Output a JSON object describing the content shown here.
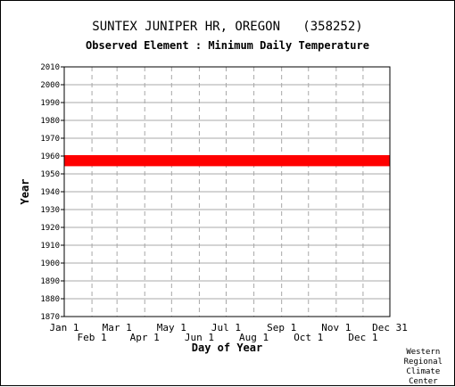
{
  "chart_data": {
    "type": "scatter",
    "title": "SUNTEX JUNIPER HR, OREGON   (358252)",
    "subtitle": "Observed Element : Minimum Daily Temperature",
    "xlabel": "Day of Year",
    "ylabel": "Year",
    "xlim": [
      1,
      365
    ],
    "ylim": [
      1870,
      2010
    ],
    "grid": true,
    "y_ticks": [
      1870,
      1880,
      1890,
      1900,
      1910,
      1920,
      1930,
      1940,
      1950,
      1960,
      1970,
      1980,
      1990,
      2000,
      2010
    ],
    "x_ticks_top": [
      {
        "label": "Jan 1",
        "day": 1
      },
      {
        "label": "Mar 1",
        "day": 60
      },
      {
        "label": "May 1",
        "day": 121
      },
      {
        "label": "Jul 1",
        "day": 182
      },
      {
        "label": "Sep 1",
        "day": 244
      },
      {
        "label": "Nov 1",
        "day": 305
      },
      {
        "label": "Dec 31",
        "day": 365
      }
    ],
    "x_ticks_bottom": [
      {
        "label": "Feb 1",
        "day": 32
      },
      {
        "label": "Apr 1",
        "day": 91
      },
      {
        "label": "Jun 1",
        "day": 152
      },
      {
        "label": "Aug 1",
        "day": 213
      },
      {
        "label": "Oct 1",
        "day": 274
      },
      {
        "label": "Dec 1",
        "day": 335
      }
    ],
    "series": [
      {
        "color": "#ff0000",
        "segments": [
          {
            "year": 1955,
            "start_day": 1,
            "end_day": 365
          },
          {
            "year": 1956,
            "start_day": 1,
            "end_day": 365
          },
          {
            "year": 1957,
            "start_day": 1,
            "end_day": 365
          },
          {
            "year": 1958,
            "start_day": 1,
            "end_day": 365
          },
          {
            "year": 1959,
            "start_day": 1,
            "end_day": 365
          },
          {
            "year": 1960,
            "start_day": 1,
            "end_day": 365
          }
        ]
      }
    ]
  },
  "credit": [
    "Western",
    "Regional",
    "Climate",
    "Center"
  ]
}
